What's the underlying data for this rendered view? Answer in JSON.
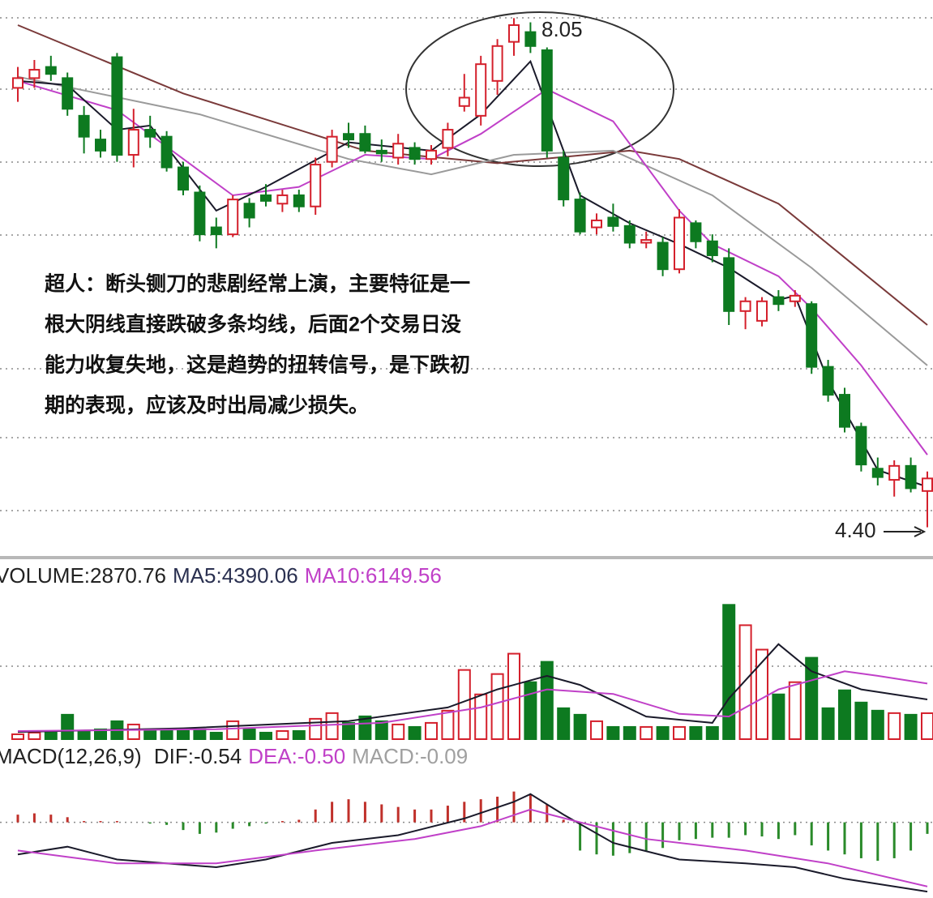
{
  "chart_data": [
    {
      "type": "candlestick",
      "open": [
        7.55,
        7.62,
        7.7,
        7.62,
        7.35,
        7.18,
        7.77,
        7.07,
        7.25,
        7.2,
        6.98,
        6.8,
        6.55,
        6.5,
        6.72,
        6.78,
        6.72,
        6.78,
        6.7,
        7.02,
        7.22,
        7.22,
        7.1,
        7.05,
        7.12,
        7.04,
        7.12,
        7.42,
        7.35,
        7.6,
        7.88,
        7.95,
        7.82,
        7.05,
        6.75,
        6.55,
        6.62,
        6.56,
        6.44,
        6.44,
        6.25,
        6.58,
        6.45,
        6.33,
        5.95,
        5.88,
        6.05,
        6.02,
        6.0,
        5.55,
        5.35,
        5.12,
        4.82,
        4.74,
        4.84,
        4.66
      ],
      "high": [
        7.7,
        7.75,
        7.78,
        7.66,
        7.42,
        7.25,
        7.8,
        7.4,
        7.35,
        7.24,
        7.02,
        6.85,
        6.62,
        6.78,
        6.76,
        6.86,
        6.82,
        6.82,
        7.05,
        7.25,
        7.3,
        7.28,
        7.18,
        7.22,
        7.16,
        7.14,
        7.3,
        7.65,
        7.78,
        7.9,
        8.05,
        8.02,
        7.84,
        7.1,
        6.8,
        6.65,
        6.72,
        6.6,
        6.52,
        6.48,
        6.68,
        6.6,
        6.5,
        6.4,
        6.05,
        6.05,
        6.1,
        6.1,
        6.02,
        5.6,
        5.4,
        5.15,
        4.9,
        4.88,
        4.9,
        4.8
      ],
      "low": [
        7.45,
        7.55,
        7.6,
        7.35,
        7.08,
        7.05,
        7.02,
        6.98,
        7.12,
        6.95,
        6.78,
        6.45,
        6.4,
        6.48,
        6.55,
        6.7,
        6.66,
        6.66,
        6.64,
        6.98,
        7.12,
        7.08,
        7.02,
        7.0,
        7.0,
        7.0,
        7.06,
        7.38,
        7.28,
        7.5,
        7.78,
        7.8,
        7.05,
        6.7,
        6.5,
        6.5,
        6.52,
        6.4,
        6.4,
        6.2,
        6.22,
        6.4,
        6.3,
        5.85,
        5.82,
        5.84,
        5.95,
        5.98,
        5.5,
        5.3,
        5.08,
        4.8,
        4.7,
        4.62,
        4.65,
        4.4
      ],
      "close": [
        7.62,
        7.68,
        7.65,
        7.4,
        7.2,
        7.1,
        7.07,
        7.25,
        7.2,
        6.98,
        6.82,
        6.5,
        6.5,
        6.75,
        6.62,
        6.74,
        6.78,
        6.7,
        7.0,
        7.2,
        7.18,
        7.1,
        7.08,
        7.15,
        7.04,
        7.1,
        7.25,
        7.48,
        7.72,
        7.85,
        8.0,
        7.85,
        7.1,
        6.75,
        6.52,
        6.6,
        6.56,
        6.44,
        6.46,
        6.25,
        6.62,
        6.45,
        6.35,
        5.95,
        6.02,
        6.02,
        6.0,
        6.06,
        5.55,
        5.35,
        5.12,
        4.85,
        4.76,
        4.84,
        4.68,
        4.75
      ],
      "up_color": "#d4202c",
      "down_color": "#0d7a20",
      "ylim": [
        4.2,
        8.18
      ],
      "lines": [
        {
          "color": "#7a3a3a",
          "x": [
            0,
            10,
            21,
            29,
            37,
            40,
            46,
            49,
            55
          ],
          "values": [
            8.0,
            7.51,
            7.1,
            7.01,
            7.1,
            7.04,
            6.72,
            6.43,
            5.85
          ]
        },
        {
          "color": "#9a9a9a",
          "x": [
            0,
            11,
            20,
            25,
            30,
            36,
            42,
            48,
            55
          ],
          "values": [
            7.63,
            7.36,
            7.04,
            6.93,
            7.07,
            7.1,
            6.78,
            6.26,
            5.56
          ]
        },
        {
          "color": "#c040c8",
          "x": [
            0,
            6,
            13,
            17,
            21,
            25,
            28,
            32,
            36,
            40,
            42,
            46,
            48,
            51,
            55
          ],
          "values": [
            7.6,
            7.39,
            6.78,
            6.84,
            7.07,
            7.04,
            7.22,
            7.54,
            7.31,
            6.67,
            6.43,
            6.2,
            5.97,
            5.56,
            4.92
          ]
        },
        {
          "color": "#1a1a2a",
          "x": [
            0,
            3,
            6,
            8,
            12,
            15,
            20,
            25,
            28,
            31,
            34,
            37,
            40,
            43,
            46,
            47,
            49,
            52,
            55
          ],
          "values": [
            7.6,
            7.57,
            7.25,
            7.28,
            6.67,
            6.84,
            7.16,
            7.1,
            7.36,
            7.74,
            6.78,
            6.58,
            6.43,
            6.26,
            6.03,
            6.06,
            5.45,
            4.81,
            4.69
          ]
        }
      ],
      "high_label": 8.05,
      "low_label": {
        "value": 4.4,
        "label": "4.40"
      },
      "annotation": [
        "超人：断头铡刀的悲剧经常上演，主要特征是一",
        "根大阴线直接跌破多条均线，后面2个交易日没",
        "能力收复失地，这是趋势的扭转信号，是下跌初",
        "期的表现，应该及时出局减少损失。"
      ]
    },
    {
      "type": "volume",
      "legend": [
        {
          "name": "VOLUME:",
          "value": 2870.76,
          "color": "#222"
        },
        {
          "name": "MA5:",
          "value": 4390.06,
          "color": "#2a3050"
        },
        {
          "name": "MA10:",
          "value": 6149.56,
          "color": "#c040c8"
        }
      ],
      "values": [
        540,
        720,
        720,
        2700,
        900,
        1080,
        1980,
        1620,
        1080,
        900,
        900,
        1080,
        720,
        1980,
        1080,
        720,
        900,
        900,
        2250,
        2880,
        1800,
        2520,
        1980,
        1620,
        1350,
        1800,
        3150,
        7650,
        4950,
        7200,
        9450,
        6300,
        8550,
        3420,
        2700,
        1980,
        1350,
        1350,
        1350,
        1350,
        1350,
        1350,
        1350,
        14850,
        12600,
        9900,
        4950,
        6300,
        9000,
        3420,
        5400,
        4050,
        3150,
        2880,
        2700,
        2870.76
      ],
      "ylim": [
        0,
        19000
      ],
      "lines": [
        {
          "color": "#1a1a2a",
          "x": [
            0,
            10,
            20,
            26,
            29,
            32,
            34,
            38,
            42,
            43,
            46,
            48,
            51,
            55
          ],
          "values": [
            800,
            1200,
            2000,
            3500,
            5500,
            7000,
            6000,
            2500,
            1800,
            4500,
            10500,
            7500,
            5500,
            4390.06
          ]
        },
        {
          "color": "#c040c8",
          "x": [
            0,
            12,
            22,
            28,
            32,
            36,
            40,
            43,
            46,
            50,
            52,
            55
          ],
          "values": [
            900,
            1100,
            1800,
            3500,
            5500,
            5000,
            2800,
            2500,
            5500,
            7500,
            7000,
            6149.56
          ]
        }
      ]
    },
    {
      "type": "macd",
      "title": "MACD(12,26,9)",
      "legend": [
        {
          "name": "DIF:",
          "value": -0.54,
          "color": "#222"
        },
        {
          "name": "DEA:",
          "value": -0.5,
          "value_label": "-0.50",
          "color": "#c040c8"
        },
        {
          "name": "MACD:",
          "value": -0.09,
          "color": "#a0a0a0"
        }
      ],
      "values": [
        0.06,
        0.07,
        0.06,
        0.04,
        0.01,
        0.01,
        0.01,
        0.0,
        -0.01,
        -0.02,
        -0.06,
        -0.09,
        -0.08,
        -0.05,
        -0.03,
        -0.01,
        0.01,
        0.02,
        0.1,
        0.16,
        0.18,
        0.16,
        0.14,
        0.12,
        0.1,
        0.1,
        0.13,
        0.16,
        0.18,
        0.2,
        0.24,
        0.22,
        0.14,
        0.02,
        -0.22,
        -0.25,
        -0.26,
        -0.24,
        -0.22,
        -0.2,
        -0.14,
        -0.13,
        -0.12,
        -0.12,
        -0.1,
        -0.11,
        -0.13,
        -0.1,
        -0.18,
        -0.22,
        -0.25,
        -0.28,
        -0.3,
        -0.28,
        -0.22,
        -0.09
      ],
      "pos_color": "#c0302a",
      "neg_color": "#2a8a2a",
      "ylim": [
        -0.59,
        0.44
      ],
      "lines": [
        {
          "color": "#1a1a2a",
          "x": [
            0,
            3,
            6,
            12,
            15,
            19,
            23,
            27,
            30,
            31,
            33,
            36,
            40,
            44,
            47,
            50,
            55
          ],
          "values": [
            -0.25,
            -0.19,
            -0.29,
            -0.35,
            -0.29,
            -0.16,
            -0.1,
            0.03,
            0.16,
            0.22,
            0.06,
            -0.16,
            -0.29,
            -0.32,
            -0.35,
            -0.44,
            -0.54
          ]
        },
        {
          "color": "#c040c8",
          "x": [
            0,
            6,
            12,
            18,
            24,
            28,
            31,
            34,
            38,
            44,
            49,
            55
          ],
          "values": [
            -0.22,
            -0.32,
            -0.32,
            -0.22,
            -0.13,
            -0.03,
            0.1,
            0.0,
            -0.13,
            -0.22,
            -0.32,
            -0.5
          ]
        }
      ]
    }
  ]
}
